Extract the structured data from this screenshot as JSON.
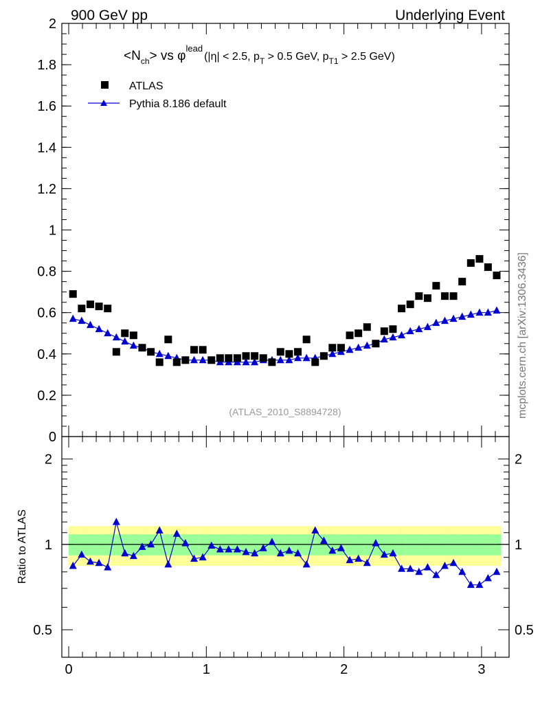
{
  "header": {
    "left": "900 GeV pp",
    "right": "Underlying Event"
  },
  "side_label": "mcplots.cern.ch [arXiv:1306.3436]",
  "watermark": "(ATLAS_2010_S8894728)",
  "colors": {
    "data": "#000000",
    "mc": "#0000d0",
    "band_inner": "#99ff99",
    "band_outer": "#ffff99"
  },
  "chart_data": [
    {
      "type": "scatter",
      "title": {
        "base": "<N",
        "sub1": "ch",
        "mid": "> vs φ",
        "sup": "lead",
        "paren": "(|η| < 2.5, p",
        "sub2": "T",
        "mid2": " > 0.5 GeV, p",
        "sub3": "T1",
        "tail": " > 2.5 GeV)"
      },
      "xlim": [
        -0.05,
        3.2
      ],
      "ylim": [
        0,
        2
      ],
      "y_ticks": [
        "0",
        "0.2",
        "0.4",
        "0.6",
        "0.8",
        "1",
        "1.2",
        "1.4",
        "1.6",
        "1.8",
        "2"
      ],
      "legend_position": "top-left",
      "series": [
        {
          "name": "ATLAS",
          "marker": "square",
          "x": [
            0.031,
            0.094,
            0.157,
            0.22,
            0.283,
            0.346,
            0.408,
            0.471,
            0.534,
            0.597,
            0.66,
            0.723,
            0.785,
            0.848,
            0.911,
            0.974,
            1.037,
            1.1,
            1.162,
            1.225,
            1.288,
            1.351,
            1.414,
            1.477,
            1.539,
            1.602,
            1.665,
            1.728,
            1.791,
            1.854,
            1.916,
            1.979,
            2.042,
            2.105,
            2.168,
            2.231,
            2.293,
            2.356,
            2.419,
            2.482,
            2.545,
            2.608,
            2.67,
            2.733,
            2.796,
            2.859,
            2.922,
            2.985,
            3.047,
            3.11
          ],
          "y": [
            0.69,
            0.62,
            0.64,
            0.63,
            0.62,
            0.41,
            0.5,
            0.49,
            0.43,
            0.41,
            0.36,
            0.47,
            0.36,
            0.37,
            0.42,
            0.42,
            0.37,
            0.38,
            0.38,
            0.38,
            0.39,
            0.39,
            0.38,
            0.36,
            0.41,
            0.4,
            0.41,
            0.47,
            0.36,
            0.39,
            0.43,
            0.43,
            0.49,
            0.5,
            0.53,
            0.45,
            0.51,
            0.52,
            0.62,
            0.64,
            0.68,
            0.67,
            0.73,
            0.68,
            0.68,
            0.75,
            0.84,
            0.86,
            0.82,
            0.78
          ]
        },
        {
          "name": "Pythia 8.186 default",
          "marker": "triangle",
          "x": [
            0.031,
            0.094,
            0.157,
            0.22,
            0.283,
            0.346,
            0.408,
            0.471,
            0.534,
            0.597,
            0.66,
            0.723,
            0.785,
            0.848,
            0.911,
            0.974,
            1.037,
            1.1,
            1.162,
            1.225,
            1.288,
            1.351,
            1.414,
            1.477,
            1.539,
            1.602,
            1.665,
            1.728,
            1.791,
            1.854,
            1.916,
            1.979,
            2.042,
            2.105,
            2.168,
            2.231,
            2.293,
            2.356,
            2.419,
            2.482,
            2.545,
            2.608,
            2.67,
            2.733,
            2.796,
            2.859,
            2.922,
            2.985,
            3.047,
            3.11
          ],
          "y": [
            0.57,
            0.56,
            0.54,
            0.52,
            0.5,
            0.48,
            0.46,
            0.44,
            0.43,
            0.41,
            0.4,
            0.39,
            0.38,
            0.37,
            0.37,
            0.37,
            0.37,
            0.36,
            0.36,
            0.36,
            0.36,
            0.36,
            0.37,
            0.37,
            0.37,
            0.37,
            0.38,
            0.38,
            0.38,
            0.39,
            0.4,
            0.41,
            0.42,
            0.43,
            0.44,
            0.45,
            0.47,
            0.48,
            0.49,
            0.51,
            0.52,
            0.53,
            0.55,
            0.56,
            0.57,
            0.58,
            0.59,
            0.6,
            0.6,
            0.61
          ]
        }
      ]
    },
    {
      "type": "line",
      "ylabel": "Ratio to ATLAS",
      "yscale": "log",
      "ylim": [
        0.4,
        2.4
      ],
      "y_ticks": [
        "0.5",
        "1",
        "2"
      ],
      "x_ticks": [
        "0",
        "1",
        "2",
        "3"
      ],
      "reference_line": 1,
      "bands": {
        "outer_half_width": [
          0.16,
          0.16,
          0.16,
          0.16,
          0.16,
          0.16,
          0.16,
          0.16,
          0.16,
          0.16,
          0.16,
          0.16,
          0.16,
          0.16,
          0.16,
          0.16,
          0.16,
          0.16,
          0.16,
          0.16,
          0.16,
          0.16,
          0.16,
          0.16,
          0.16,
          0.16,
          0.16,
          0.16,
          0.16,
          0.16,
          0.16,
          0.16,
          0.16,
          0.16,
          0.16,
          0.16,
          0.16,
          0.16,
          0.16,
          0.16,
          0.16,
          0.16,
          0.16,
          0.16,
          0.16,
          0.16,
          0.16,
          0.16,
          0.16,
          0.16
        ],
        "inner_half_width": [
          0.085,
          0.085,
          0.085,
          0.085,
          0.085,
          0.085,
          0.085,
          0.085,
          0.085,
          0.085,
          0.085,
          0.085,
          0.085,
          0.085,
          0.085,
          0.085,
          0.085,
          0.085,
          0.085,
          0.085,
          0.085,
          0.085,
          0.085,
          0.085,
          0.085,
          0.085,
          0.085,
          0.085,
          0.085,
          0.085,
          0.085,
          0.085,
          0.085,
          0.085,
          0.085,
          0.085,
          0.085,
          0.085,
          0.085,
          0.085,
          0.085,
          0.085,
          0.085,
          0.085,
          0.085,
          0.085,
          0.085,
          0.085,
          0.085,
          0.085
        ]
      },
      "series": [
        {
          "name": "Pythia 8.186 default",
          "marker": "triangle",
          "x": [
            0.031,
            0.094,
            0.157,
            0.22,
            0.283,
            0.346,
            0.408,
            0.471,
            0.534,
            0.597,
            0.66,
            0.723,
            0.785,
            0.848,
            0.911,
            0.974,
            1.037,
            1.1,
            1.162,
            1.225,
            1.288,
            1.351,
            1.414,
            1.477,
            1.539,
            1.602,
            1.665,
            1.728,
            1.791,
            1.854,
            1.916,
            1.979,
            2.042,
            2.105,
            2.168,
            2.231,
            2.293,
            2.356,
            2.419,
            2.482,
            2.545,
            2.608,
            2.67,
            2.733,
            2.796,
            2.859,
            2.922,
            2.985,
            3.047,
            3.11
          ],
          "y": [
            0.84,
            0.92,
            0.87,
            0.86,
            0.83,
            1.2,
            0.93,
            0.91,
            0.98,
            1.0,
            1.12,
            0.85,
            1.09,
            1.01,
            0.89,
            0.9,
            0.99,
            0.96,
            0.96,
            0.96,
            0.94,
            0.93,
            0.97,
            1.02,
            0.93,
            0.95,
            0.93,
            0.85,
            1.12,
            1.03,
            0.95,
            0.97,
            0.88,
            0.89,
            0.86,
            1.01,
            0.92,
            0.93,
            0.82,
            0.82,
            0.8,
            0.83,
            0.78,
            0.84,
            0.86,
            0.8,
            0.72,
            0.72,
            0.76,
            0.8
          ]
        }
      ]
    }
  ]
}
